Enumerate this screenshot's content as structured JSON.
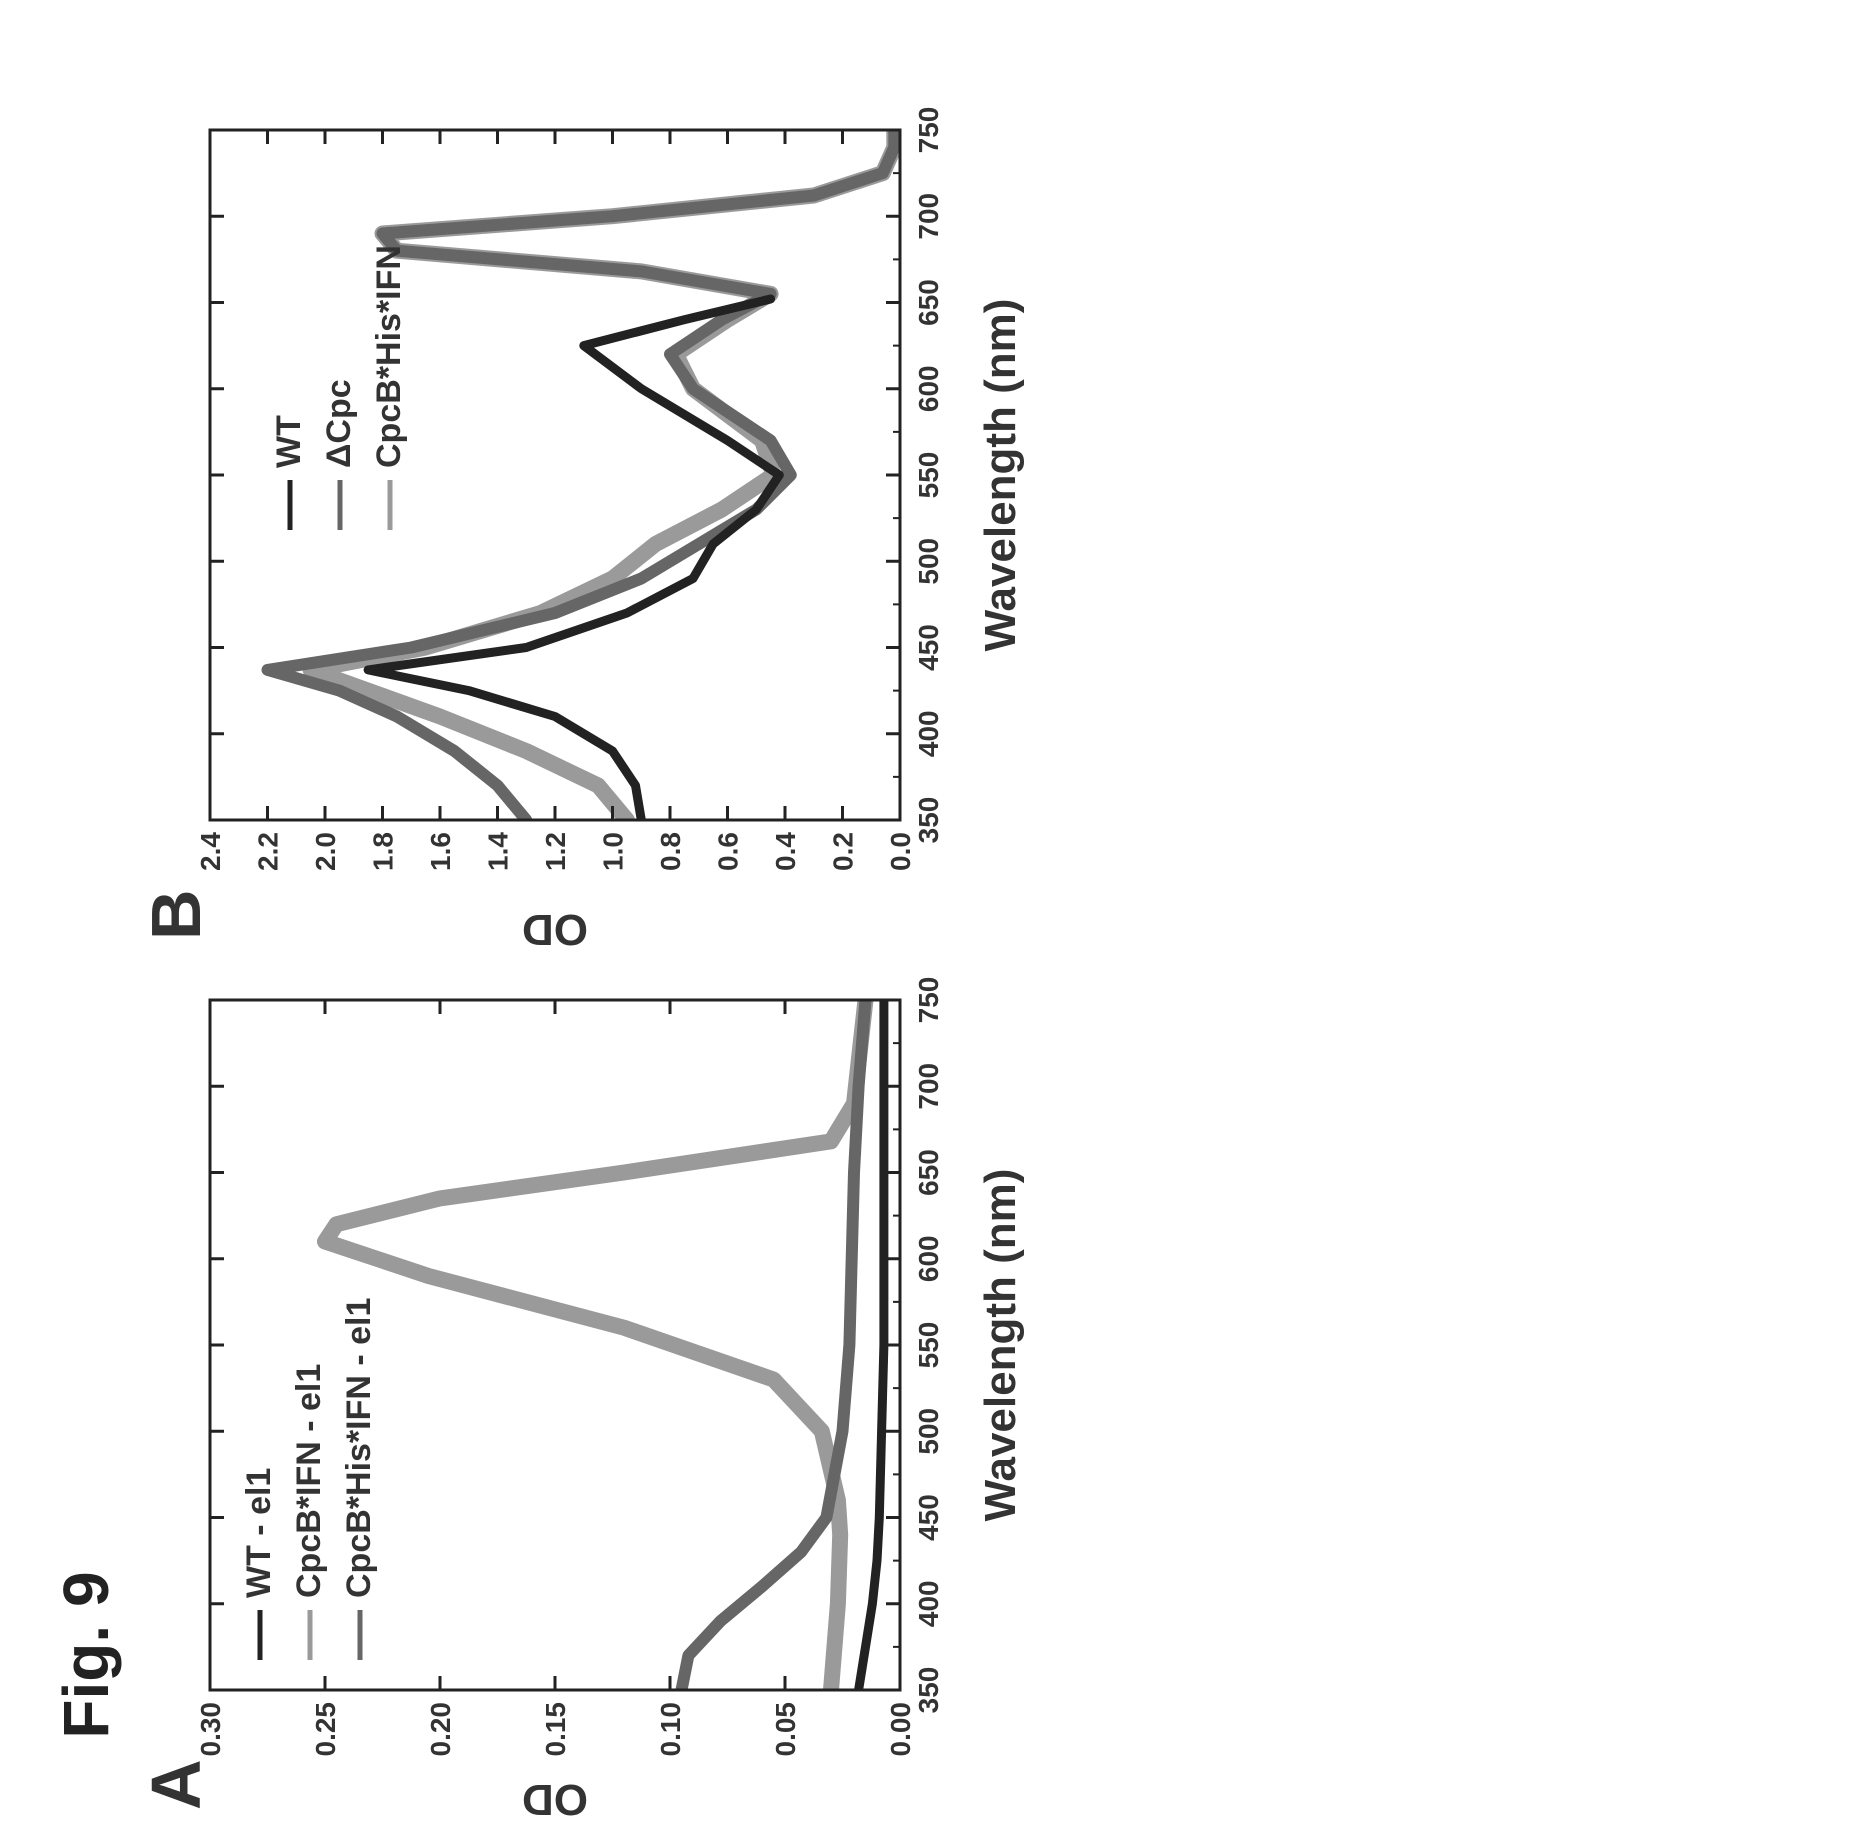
{
  "figure_label": "Fig. 9",
  "colors": {
    "dark": "#222222",
    "mid": "#666666",
    "light": "#9a9a9a"
  },
  "chart_data": [
    {
      "type": "line",
      "panel_label": "A",
      "xlabel": "Wavelength (nm)",
      "ylabel": "OD",
      "xlim": [
        350,
        750
      ],
      "ylim": [
        0,
        0.3
      ],
      "xticks": [
        "350",
        "400",
        "450",
        "500",
        "550",
        "600",
        "650",
        "700",
        "750"
      ],
      "yticks": [
        "0.00",
        "0.05",
        "0.10",
        "0.15",
        "0.20",
        "0.25",
        "0.30"
      ],
      "legend_position": "top-left",
      "series": [
        {
          "name": "WT - el1",
          "color": "dark",
          "x": [
            350,
            375,
            400,
            425,
            450,
            500,
            550,
            600,
            650,
            700,
            750
          ],
          "y": [
            0.018,
            0.015,
            0.012,
            0.01,
            0.009,
            0.008,
            0.007,
            0.007,
            0.007,
            0.007,
            0.007
          ]
        },
        {
          "name": "CpcB*IFN - el1",
          "color": "light",
          "x": [
            350,
            400,
            440,
            460,
            500,
            530,
            560,
            590,
            610,
            620,
            635,
            650,
            668,
            690,
            750
          ],
          "y": [
            0.03,
            0.027,
            0.026,
            0.027,
            0.034,
            0.055,
            0.12,
            0.205,
            0.25,
            0.245,
            0.2,
            0.12,
            0.03,
            0.02,
            0.015
          ]
        },
        {
          "name": "CpcB*His*IFN - el1",
          "color": "mid",
          "x": [
            350,
            370,
            390,
            410,
            430,
            450,
            500,
            550,
            600,
            650,
            700,
            750
          ],
          "y": [
            0.095,
            0.092,
            0.078,
            0.06,
            0.043,
            0.032,
            0.025,
            0.022,
            0.021,
            0.02,
            0.018,
            0.015
          ]
        }
      ]
    },
    {
      "type": "line",
      "panel_label": "B",
      "xlabel": "Wavelength (nm)",
      "ylabel": "OD",
      "xlim": [
        350,
        750
      ],
      "ylim": [
        0,
        2.4
      ],
      "xticks": [
        "350",
        "400",
        "450",
        "500",
        "550",
        "600",
        "650",
        "700",
        "750"
      ],
      "yticks": [
        "0.0",
        "0.2",
        "0.4",
        "0.6",
        "0.8",
        "1.0",
        "1.2",
        "1.4",
        "1.6",
        "1.8",
        "2.0",
        "2.2",
        "2.4"
      ],
      "legend_position": "top-center",
      "series": [
        {
          "name": "WT",
          "color": "dark",
          "x": [
            350,
            370,
            390,
            410,
            425,
            437,
            450,
            470,
            490,
            510,
            530,
            550,
            570,
            600,
            625,
            640,
            652
          ],
          "y": [
            0.9,
            0.92,
            1.0,
            1.2,
            1.5,
            1.85,
            1.3,
            0.95,
            0.72,
            0.65,
            0.5,
            0.42,
            0.6,
            0.9,
            1.1,
            0.75,
            0.45
          ]
        },
        {
          "name": "ΔCpc",
          "color": "mid",
          "x": [
            350,
            370,
            390,
            410,
            425,
            437,
            450,
            470,
            490,
            510,
            530,
            550,
            570,
            600,
            620,
            640,
            655,
            668,
            680,
            690,
            700,
            712,
            725,
            740,
            750
          ],
          "y": [
            1.3,
            1.4,
            1.55,
            1.75,
            1.95,
            2.2,
            1.7,
            1.2,
            0.9,
            0.7,
            0.5,
            0.38,
            0.45,
            0.72,
            0.8,
            0.62,
            0.45,
            0.9,
            1.75,
            1.8,
            1.0,
            0.3,
            0.06,
            0.02,
            0.02
          ]
        },
        {
          "name": "CpcB*His*IFN",
          "color": "light",
          "x": [
            350,
            370,
            390,
            410,
            425,
            437,
            450,
            470,
            490,
            510,
            530,
            550,
            570,
            600,
            620,
            640,
            655,
            668,
            680,
            690,
            700,
            712,
            725,
            740,
            750
          ],
          "y": [
            0.95,
            1.05,
            1.3,
            1.6,
            1.85,
            2.05,
            1.65,
            1.25,
            1.0,
            0.85,
            0.62,
            0.44,
            0.48,
            0.72,
            0.78,
            0.6,
            0.45,
            0.9,
            1.75,
            1.8,
            1.0,
            0.3,
            0.06,
            0.02,
            0.02
          ]
        }
      ]
    }
  ]
}
